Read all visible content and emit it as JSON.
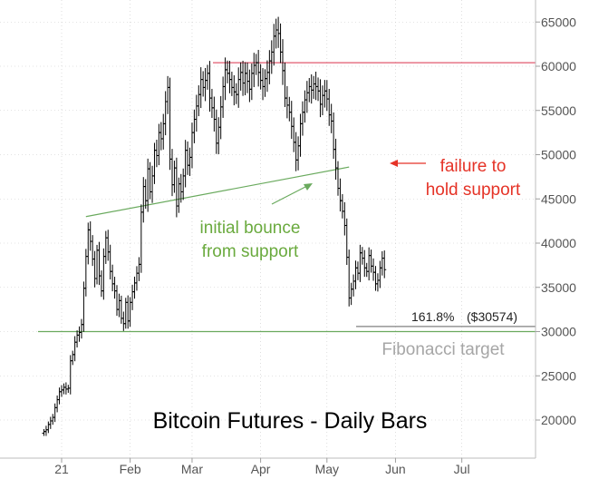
{
  "chart_data": {
    "type": "bar",
    "subtype": "ohlc-daily",
    "title": "Bitcoin Futures - Daily Bars",
    "y_axis": {
      "position": "right",
      "ylim": [
        15000,
        67000
      ],
      "ticks": [
        20000,
        25000,
        30000,
        35000,
        40000,
        45000,
        50000,
        55000,
        60000,
        65000
      ],
      "tick_labels": [
        "20000",
        "25000",
        "30000",
        "35000",
        "40000",
        "45000",
        "50000",
        "55000",
        "60000",
        "65000"
      ]
    },
    "x_axis": {
      "start": "2020-12-24",
      "end": "2021-07-31",
      "ticks": [
        {
          "date": "2021-01-01",
          "label": "21"
        },
        {
          "date": "2021-02-01",
          "label": "Feb"
        },
        {
          "date": "2021-03-01",
          "label": "Mar"
        },
        {
          "date": "2021-04-01",
          "label": "Apr"
        },
        {
          "date": "2021-05-01",
          "label": "May"
        },
        {
          "date": "2021-06-01",
          "label": "Jun"
        },
        {
          "date": "2021-07-01",
          "label": "Jul"
        }
      ]
    },
    "series": [
      {
        "values": [
          [
            "2020-12-24",
            18700
          ],
          [
            "2020-12-25",
            18900
          ],
          [
            "2020-12-26",
            19500
          ],
          [
            "2020-12-27",
            19900
          ],
          [
            "2020-12-28",
            20300
          ],
          [
            "2020-12-29",
            21400
          ],
          [
            "2020-12-30",
            22300
          ],
          [
            "2020-12-31",
            23200
          ],
          [
            "2021-01-01",
            23400
          ],
          [
            "2021-01-02",
            23700
          ],
          [
            "2021-01-03",
            23500
          ],
          [
            "2021-01-04",
            23600
          ],
          [
            "2021-01-05",
            26700
          ],
          [
            "2021-01-06",
            27400
          ],
          [
            "2021-01-07",
            28800
          ],
          [
            "2021-01-08",
            29600
          ],
          [
            "2021-01-09",
            29900
          ],
          [
            "2021-01-10",
            30800
          ],
          [
            "2021-01-11",
            34900
          ],
          [
            "2021-01-12",
            38500
          ],
          [
            "2021-01-13",
            41500
          ],
          [
            "2021-01-14",
            40200
          ],
          [
            "2021-01-15",
            38200
          ],
          [
            "2021-01-16",
            36000
          ],
          [
            "2021-01-17",
            39200
          ],
          [
            "2021-01-18",
            36300
          ],
          [
            "2021-01-19",
            34600
          ],
          [
            "2021-01-20",
            38500
          ],
          [
            "2021-01-21",
            40600
          ],
          [
            "2021-01-22",
            39000
          ],
          [
            "2021-01-23",
            36800
          ],
          [
            "2021-01-24",
            35400
          ],
          [
            "2021-01-25",
            34600
          ],
          [
            "2021-01-26",
            32500
          ],
          [
            "2021-01-27",
            33500
          ],
          [
            "2021-01-28",
            31500
          ],
          [
            "2021-01-29",
            30900
          ],
          [
            "2021-01-30",
            33300
          ],
          [
            "2021-01-31",
            31200
          ],
          [
            "2021-02-01",
            33300
          ],
          [
            "2021-02-02",
            34500
          ],
          [
            "2021-02-03",
            35500
          ],
          [
            "2021-02-04",
            36600
          ],
          [
            "2021-02-05",
            37600
          ],
          [
            "2021-02-06",
            43500
          ],
          [
            "2021-02-07",
            46400
          ],
          [
            "2021-02-08",
            44800
          ],
          [
            "2021-02-09",
            48400
          ],
          [
            "2021-02-10",
            45800
          ],
          [
            "2021-02-11",
            47600
          ],
          [
            "2021-02-12",
            50500
          ],
          [
            "2021-02-13",
            49900
          ],
          [
            "2021-02-14",
            52500
          ],
          [
            "2021-02-15",
            51800
          ],
          [
            "2021-02-16",
            53500
          ],
          [
            "2021-02-17",
            56000
          ],
          [
            "2021-02-18",
            57600
          ],
          [
            "2021-02-19",
            49500
          ],
          [
            "2021-02-20",
            46600
          ],
          [
            "2021-02-21",
            48500
          ],
          [
            "2021-02-22",
            44200
          ],
          [
            "2021-02-23",
            46700
          ],
          [
            "2021-02-24",
            45800
          ],
          [
            "2021-02-25",
            47600
          ],
          [
            "2021-02-26",
            50500
          ],
          [
            "2021-02-27",
            48800
          ],
          [
            "2021-02-28",
            49700
          ],
          [
            "2021-03-01",
            52500
          ],
          [
            "2021-03-02",
            54000
          ],
          [
            "2021-03-03",
            55500
          ],
          [
            "2021-03-04",
            56800
          ],
          [
            "2021-03-05",
            58500
          ],
          [
            "2021-03-06",
            57600
          ],
          [
            "2021-03-07",
            58400
          ],
          [
            "2021-03-08",
            59200
          ],
          [
            "2021-03-09",
            56400
          ],
          [
            "2021-03-10",
            55300
          ],
          [
            "2021-03-11",
            54000
          ],
          [
            "2021-03-12",
            51300
          ],
          [
            "2021-03-13",
            53100
          ],
          [
            "2021-03-14",
            55400
          ],
          [
            "2021-03-15",
            57700
          ],
          [
            "2021-03-16",
            59600
          ],
          [
            "2021-03-17",
            59200
          ],
          [
            "2021-03-18",
            58500
          ],
          [
            "2021-03-19",
            57600
          ],
          [
            "2021-03-20",
            57100
          ],
          [
            "2021-03-21",
            56800
          ],
          [
            "2021-03-22",
            58500
          ],
          [
            "2021-03-23",
            59300
          ],
          [
            "2021-03-24",
            58100
          ],
          [
            "2021-03-25",
            59200
          ],
          [
            "2021-03-26",
            58300
          ],
          [
            "2021-03-27",
            57400
          ],
          [
            "2021-03-28",
            59200
          ],
          [
            "2021-03-29",
            60100
          ],
          [
            "2021-03-30",
            60400
          ],
          [
            "2021-03-31",
            59300
          ],
          [
            "2021-04-01",
            58400
          ],
          [
            "2021-04-02",
            57700
          ],
          [
            "2021-04-03",
            58600
          ],
          [
            "2021-04-04",
            59300
          ],
          [
            "2021-04-05",
            60600
          ],
          [
            "2021-04-06",
            61600
          ],
          [
            "2021-04-07",
            63400
          ],
          [
            "2021-04-08",
            64100
          ],
          [
            "2021-04-09",
            63700
          ],
          [
            "2021-04-10",
            61600
          ],
          [
            "2021-04-11",
            59500
          ],
          [
            "2021-04-12",
            56400
          ],
          [
            "2021-04-13",
            55600
          ],
          [
            "2021-04-14",
            54800
          ],
          [
            "2021-04-15",
            53200
          ],
          [
            "2021-04-16",
            51400
          ],
          [
            "2021-04-17",
            49400
          ],
          [
            "2021-04-18",
            51000
          ],
          [
            "2021-04-19",
            53500
          ],
          [
            "2021-04-20",
            54800
          ],
          [
            "2021-04-21",
            56200
          ],
          [
            "2021-04-22",
            57000
          ],
          [
            "2021-04-23",
            57700
          ],
          [
            "2021-04-24",
            57300
          ],
          [
            "2021-04-25",
            58000
          ],
          [
            "2021-04-26",
            57700
          ],
          [
            "2021-04-27",
            57200
          ],
          [
            "2021-04-28",
            55700
          ],
          [
            "2021-04-29",
            56700
          ],
          [
            "2021-04-30",
            57200
          ],
          [
            "2021-05-01",
            56300
          ],
          [
            "2021-05-02",
            54500
          ],
          [
            "2021-05-03",
            53800
          ],
          [
            "2021-05-04",
            50600
          ],
          [
            "2021-05-05",
            48500
          ],
          [
            "2021-05-06",
            46200
          ],
          [
            "2021-05-07",
            44800
          ],
          [
            "2021-05-08",
            43600
          ],
          [
            "2021-05-09",
            42000
          ],
          [
            "2021-05-10",
            38400
          ],
          [
            "2021-05-11",
            33800
          ],
          [
            "2021-05-12",
            34800
          ],
          [
            "2021-05-13",
            35700
          ],
          [
            "2021-05-14",
            37200
          ],
          [
            "2021-05-15",
            36600
          ],
          [
            "2021-05-16",
            38900
          ],
          [
            "2021-05-17",
            38300
          ],
          [
            "2021-05-18",
            37200
          ],
          [
            "2021-05-19",
            36800
          ],
          [
            "2021-05-20",
            38600
          ],
          [
            "2021-05-21",
            37400
          ],
          [
            "2021-05-22",
            36700
          ],
          [
            "2021-05-23",
            35400
          ],
          [
            "2021-05-24",
            35800
          ],
          [
            "2021-05-25",
            37200
          ],
          [
            "2021-05-26",
            38300
          ],
          [
            "2021-05-27",
            37000
          ]
        ]
      }
    ],
    "horizontal_lines": [
      {
        "y": 60400,
        "color": "#e0586f"
      },
      {
        "y": 30000,
        "color": "#6aaa5e"
      },
      {
        "y": 30574,
        "color": "#808080"
      }
    ],
    "trendlines": [
      {
        "from": [
          "2021-01-12",
          43000
        ],
        "to": [
          "2021-05-11",
          48600
        ],
        "color": "#6aaa5e"
      }
    ],
    "annotations": {
      "failure_line1": "failure to",
      "failure_line2": "hold support",
      "bounce_line1": "initial bounce",
      "bounce_line2": "from support",
      "fib_pct": "161.8%",
      "fib_price": "($30574)",
      "fib_target": "Fibonacci target"
    },
    "colors": {
      "bars": "#000000",
      "resistance": "#e0586f",
      "support": "#6aaa5e",
      "failure_text": "#e53327",
      "bounce_text": "#6aaa3e",
      "fib_text": "#a6a6a6",
      "fib_line": "#808080",
      "grid": "#c8c8c8"
    }
  }
}
